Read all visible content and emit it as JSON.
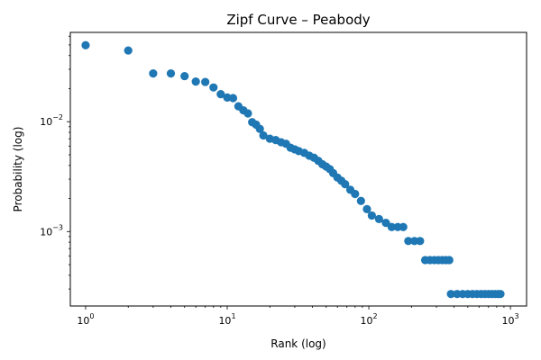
{
  "chart_data": {
    "type": "scatter",
    "title": "Zipf Curve – Peabody",
    "xlabel": "Rank (log)",
    "ylabel": "Probability (log)",
    "xscale": "log",
    "yscale": "log",
    "xlim": [
      0.78,
      1300
    ],
    "ylim": [
      0.00021,
      0.065
    ],
    "xticks": [
      {
        "value": 1,
        "base": "10",
        "exp": "0"
      },
      {
        "value": 10,
        "base": "10",
        "exp": "1"
      },
      {
        "value": 100,
        "base": "10",
        "exp": "2"
      },
      {
        "value": 1000,
        "base": "10",
        "exp": "3"
      }
    ],
    "yticks": [
      {
        "value": 0.001,
        "base": "10",
        "exp": "−3"
      },
      {
        "value": 0.01,
        "base": "10",
        "exp": "−2"
      }
    ],
    "color": "#1f77b4",
    "points": [
      [
        1,
        0.0497
      ],
      [
        2,
        0.0445
      ],
      [
        3,
        0.0275
      ],
      [
        4,
        0.0275
      ],
      [
        5,
        0.026
      ],
      [
        6,
        0.0232
      ],
      [
        7,
        0.023
      ],
      [
        8,
        0.0205
      ],
      [
        9,
        0.0178
      ],
      [
        10,
        0.0166
      ],
      [
        11,
        0.0164
      ],
      [
        12,
        0.0138
      ],
      [
        13,
        0.0127
      ],
      [
        14,
        0.0119
      ],
      [
        15,
        0.0099
      ],
      [
        16,
        0.0094
      ],
      [
        17,
        0.0086
      ],
      [
        18,
        0.0075
      ],
      [
        20,
        0.007
      ],
      [
        22,
        0.0068
      ],
      [
        24,
        0.0065
      ],
      [
        26,
        0.0063
      ],
      [
        28,
        0.0058
      ],
      [
        30,
        0.0056
      ],
      [
        32,
        0.0054
      ],
      [
        35,
        0.0052
      ],
      [
        38,
        0.0049
      ],
      [
        41,
        0.0047
      ],
      [
        44,
        0.0044
      ],
      [
        47,
        0.0041
      ],
      [
        50,
        0.0039
      ],
      [
        53,
        0.0037
      ],
      [
        56,
        0.0034
      ],
      [
        60,
        0.0031
      ],
      [
        64,
        0.0029
      ],
      [
        68,
        0.0027
      ],
      [
        74,
        0.0024
      ],
      [
        80,
        0.0022
      ],
      [
        88,
        0.0019
      ],
      [
        97,
        0.0016
      ],
      [
        105,
        0.0014
      ],
      [
        118,
        0.0013
      ],
      [
        132,
        0.0012
      ],
      [
        145,
        0.0011
      ],
      [
        160,
        0.0011
      ],
      [
        175,
        0.0011
      ],
      [
        190,
        0.00082
      ],
      [
        210,
        0.00082
      ],
      [
        230,
        0.00082
      ],
      [
        250,
        0.00055
      ],
      [
        270,
        0.00055
      ],
      [
        290,
        0.00055
      ],
      [
        310,
        0.00055
      ],
      [
        330,
        0.00055
      ],
      [
        350,
        0.00055
      ],
      [
        370,
        0.00055
      ],
      [
        380,
        0.00027
      ],
      [
        420,
        0.00027
      ],
      [
        460,
        0.00027
      ],
      [
        500,
        0.00027
      ],
      [
        540,
        0.00027
      ],
      [
        580,
        0.00027
      ],
      [
        620,
        0.00027
      ],
      [
        660,
        0.00027
      ],
      [
        700,
        0.00027
      ],
      [
        740,
        0.00027
      ],
      [
        780,
        0.00027
      ],
      [
        820,
        0.00027
      ],
      [
        850,
        0.00027
      ]
    ]
  }
}
